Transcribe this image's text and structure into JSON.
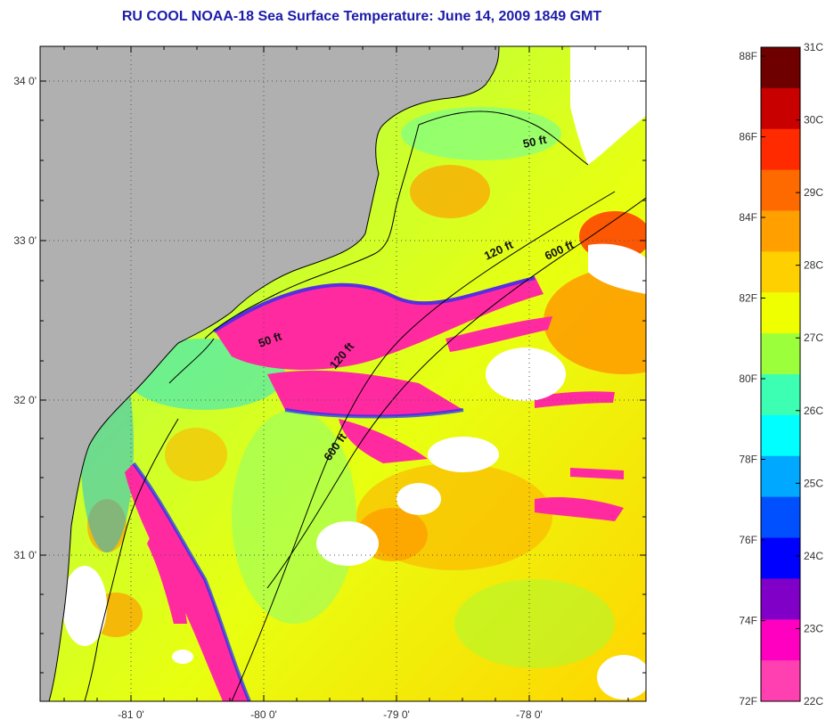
{
  "title": "RU COOL  NOAA-18  Sea Surface Temperature:  June 14, 2009 1849 GMT",
  "map": {
    "lat_labels": [
      "34 0'",
      "33 0'",
      "32 0'",
      "31 0'"
    ],
    "lon_labels": [
      "-81 0'",
      "-80 0'",
      "-79 0'",
      "-78 0'"
    ],
    "isobath_labels": [
      "50 ft",
      "120 ft",
      "600 ft",
      "50 ft",
      "120 ft",
      "600 ft"
    ]
  },
  "colorbar": {
    "fahrenheit_labels": [
      "88F",
      "86F",
      "84F",
      "82F",
      "80F",
      "78F",
      "76F",
      "74F",
      "72F"
    ],
    "celsius_labels": [
      "31C",
      "30C",
      "29C",
      "28C",
      "27C",
      "26C",
      "25C",
      "24C",
      "23C",
      "22C"
    ],
    "colors": [
      "#6e0000",
      "#c80000",
      "#ff2a00",
      "#ff6a00",
      "#ffa000",
      "#ffd000",
      "#f0ff00",
      "#9cff3c",
      "#3cffb4",
      "#00ffff",
      "#00a8ff",
      "#0050ff",
      "#0000ff",
      "#8000c8",
      "#ff00c0",
      "#ff40b0"
    ]
  },
  "colors": {
    "land": "#b0b0b0",
    "cloud": "#ffffff",
    "cold_pink": "#ff2aa0",
    "title": "#1c1caa"
  }
}
